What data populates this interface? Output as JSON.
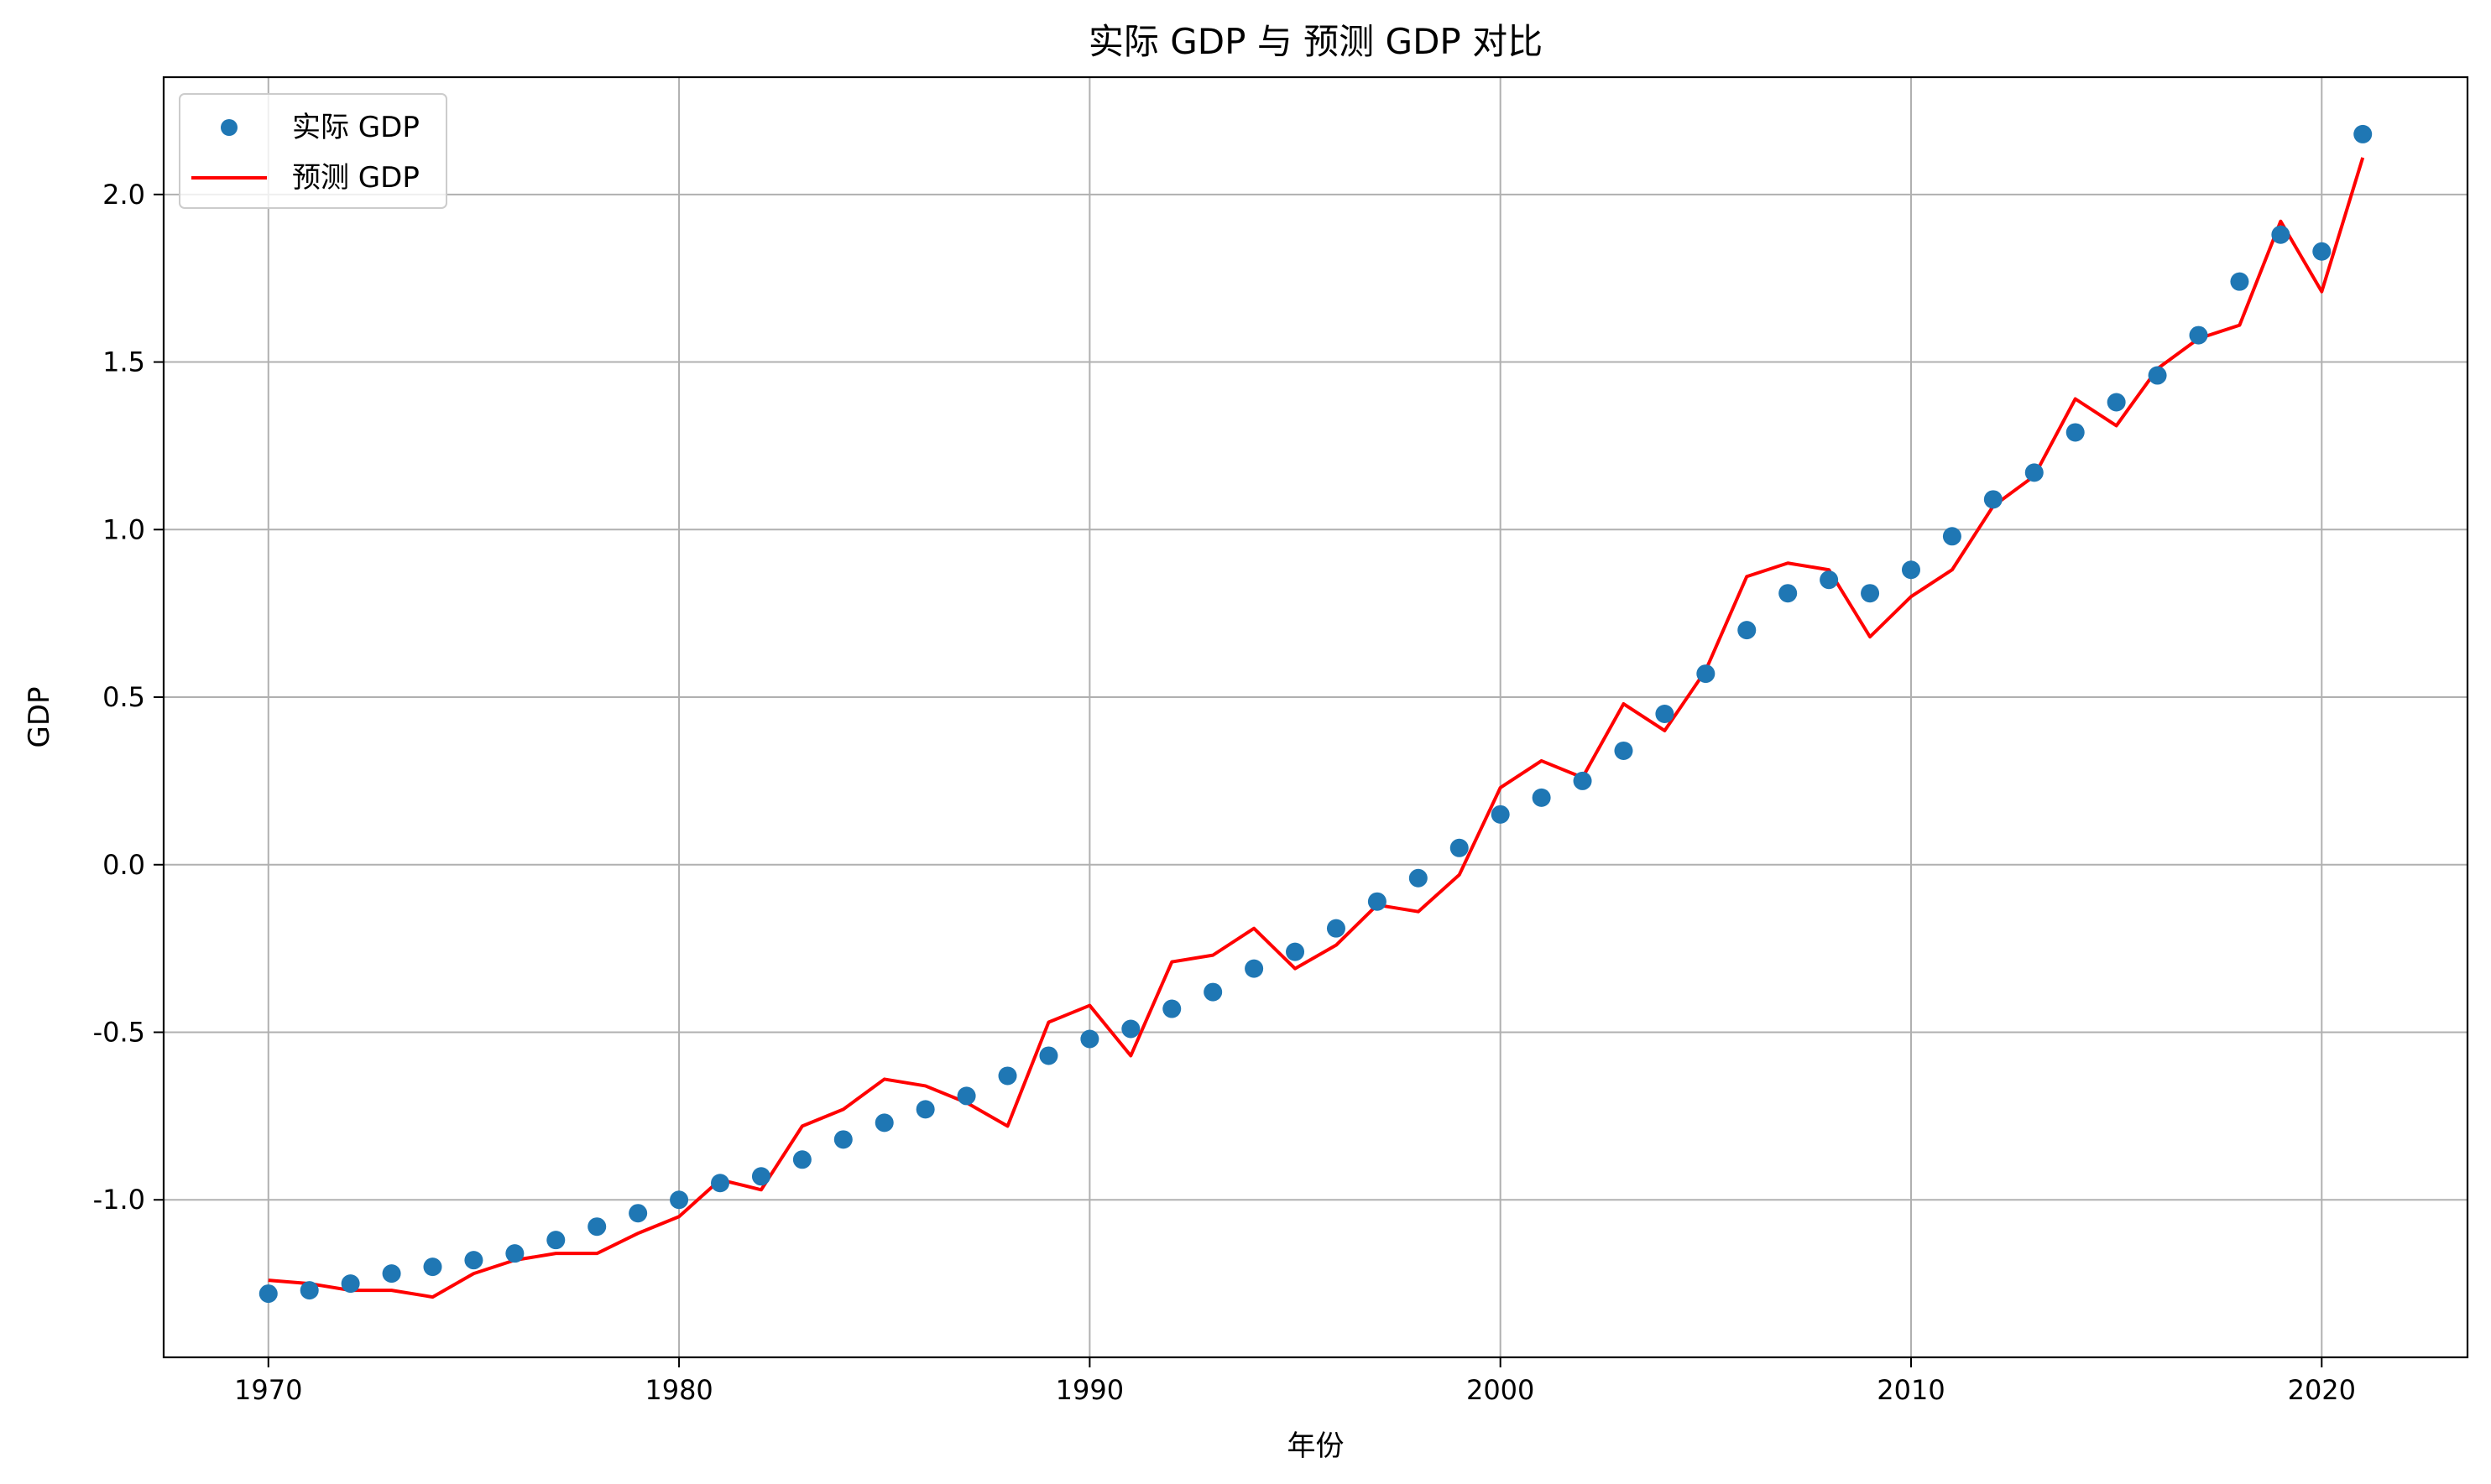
{
  "chart_data": {
    "type": "scatter+line",
    "title": "实际 GDP 与 预测 GDP 对比",
    "xlabel": "年份",
    "ylabel": "GDP",
    "xlim": [
      1967.45,
      2023.55
    ],
    "ylim": [
      -1.47,
      2.35
    ],
    "x_ticks": [
      1970,
      1980,
      1990,
      2000,
      2010,
      2020
    ],
    "y_ticks": [
      -1.0,
      -0.5,
      0.0,
      0.5,
      1.0,
      1.5,
      2.0
    ],
    "y_tick_labels": [
      "-1.0",
      "-0.5",
      "0.0",
      "0.5",
      "1.0",
      "1.5",
      "2.0"
    ],
    "grid": true,
    "legend_position": "top-left",
    "x": [
      1970,
      1971,
      1972,
      1973,
      1974,
      1975,
      1976,
      1977,
      1978,
      1979,
      1980,
      1981,
      1982,
      1983,
      1984,
      1985,
      1986,
      1987,
      1988,
      1989,
      1990,
      1991,
      1992,
      1993,
      1994,
      1995,
      1996,
      1997,
      1998,
      1999,
      2000,
      2001,
      2002,
      2003,
      2004,
      2005,
      2006,
      2007,
      2008,
      2009,
      2010,
      2011,
      2012,
      2013,
      2014,
      2015,
      2016,
      2017,
      2018,
      2019,
      2020,
      2021
    ],
    "series": [
      {
        "name": "实际 GDP",
        "kind": "scatter",
        "color": "#1f77b4",
        "values": [
          -1.28,
          -1.27,
          -1.25,
          -1.22,
          -1.2,
          -1.18,
          -1.16,
          -1.12,
          -1.08,
          -1.04,
          -1.0,
          -0.95,
          -0.93,
          -0.88,
          -0.82,
          -0.77,
          -0.73,
          -0.69,
          -0.63,
          -0.57,
          -0.52,
          -0.49,
          -0.43,
          -0.38,
          -0.31,
          -0.26,
          -0.19,
          -0.11,
          -0.04,
          0.05,
          0.15,
          0.2,
          0.25,
          0.34,
          0.45,
          0.57,
          0.7,
          0.81,
          0.85,
          0.81,
          0.88,
          0.98,
          1.09,
          1.17,
          1.29,
          1.38,
          1.46,
          1.58,
          1.74,
          1.88,
          1.83,
          2.18
        ]
      },
      {
        "name": "预测 GDP",
        "kind": "line",
        "color": "#ff0000",
        "values": [
          -1.24,
          -1.25,
          -1.27,
          -1.27,
          -1.29,
          -1.22,
          -1.18,
          -1.16,
          -1.16,
          -1.1,
          -1.05,
          -0.94,
          -0.97,
          -0.78,
          -0.73,
          -0.64,
          -0.66,
          -0.71,
          -0.78,
          -0.47,
          -0.42,
          -0.57,
          -0.29,
          -0.27,
          -0.19,
          -0.31,
          -0.24,
          -0.12,
          -0.14,
          -0.03,
          0.23,
          0.31,
          0.26,
          0.48,
          0.4,
          0.58,
          0.86,
          0.9,
          0.88,
          0.68,
          0.8,
          0.88,
          1.07,
          1.16,
          1.39,
          1.31,
          1.48,
          1.57,
          1.61,
          1.92,
          1.71,
          2.11
        ]
      }
    ]
  }
}
